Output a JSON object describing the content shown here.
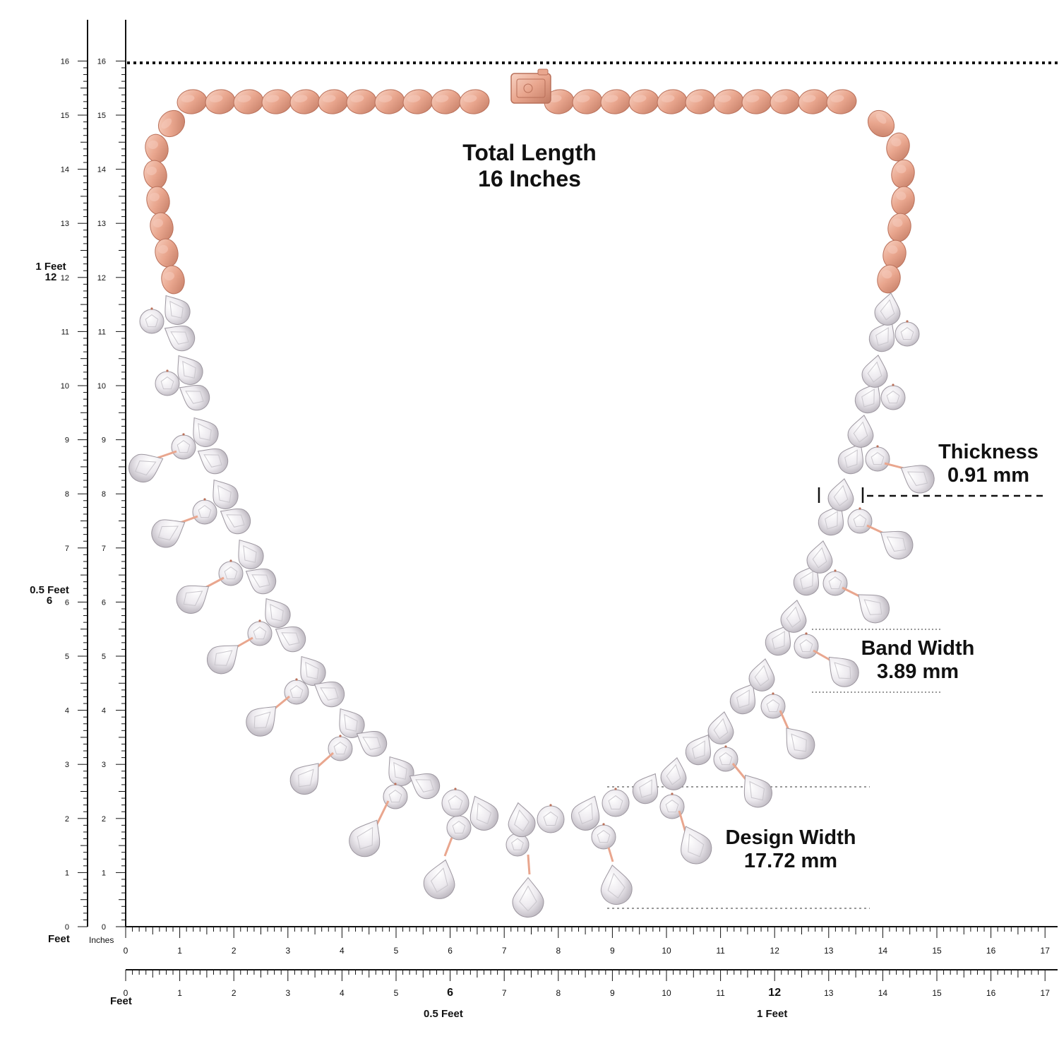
{
  "colors": {
    "gold": "#e9a68e",
    "gold_light": "#f6cbbb",
    "gold_dark": "#b9705a",
    "diamond": "#f3f1f3",
    "diamond_shade": "#c9c6cc",
    "ink": "#111111"
  },
  "labels": {
    "total_length_title": "Total Length",
    "total_length_value": "16 Inches",
    "thickness_title": "Thickness",
    "thickness_value": "0.91 mm",
    "band_width_title": "Band Width",
    "band_width_value": "3.89 mm",
    "design_width_title": "Design Width",
    "design_width_value": "17.72 mm"
  },
  "ruler_left": {
    "outer_ticks": [
      "0",
      "1",
      "2",
      "3",
      "4",
      "5",
      "6",
      "7",
      "8",
      "9",
      "10",
      "11",
      "12",
      "13",
      "14",
      "15",
      "16"
    ],
    "inner_ticks": [
      "0",
      "1",
      "2",
      "3",
      "4",
      "5",
      "6",
      "7",
      "8",
      "9",
      "10",
      "11",
      "12",
      "13",
      "14",
      "15",
      "16"
    ],
    "one_feet": "1 Feet",
    "one_feet_value": "12",
    "half_feet": "0.5 Feet",
    "half_feet_value": "6"
  },
  "ruler_bottom": {
    "ticks": [
      "0",
      "1",
      "2",
      "3",
      "4",
      "5",
      "6",
      "7",
      "8",
      "9",
      "10",
      "11",
      "12",
      "13",
      "14",
      "15",
      "16",
      "17"
    ],
    "inches_label": "Inches",
    "feet_label": "Feet",
    "ticks2": [
      "0",
      "1",
      "2",
      "3",
      "4",
      "5",
      "6",
      "7",
      "8",
      "9",
      "10",
      "11",
      "12",
      "13",
      "14",
      "15",
      "16",
      "17"
    ],
    "feet_label2": "Feet",
    "half_feet": "0.5 Feet",
    "one_feet": "1 Feet"
  }
}
